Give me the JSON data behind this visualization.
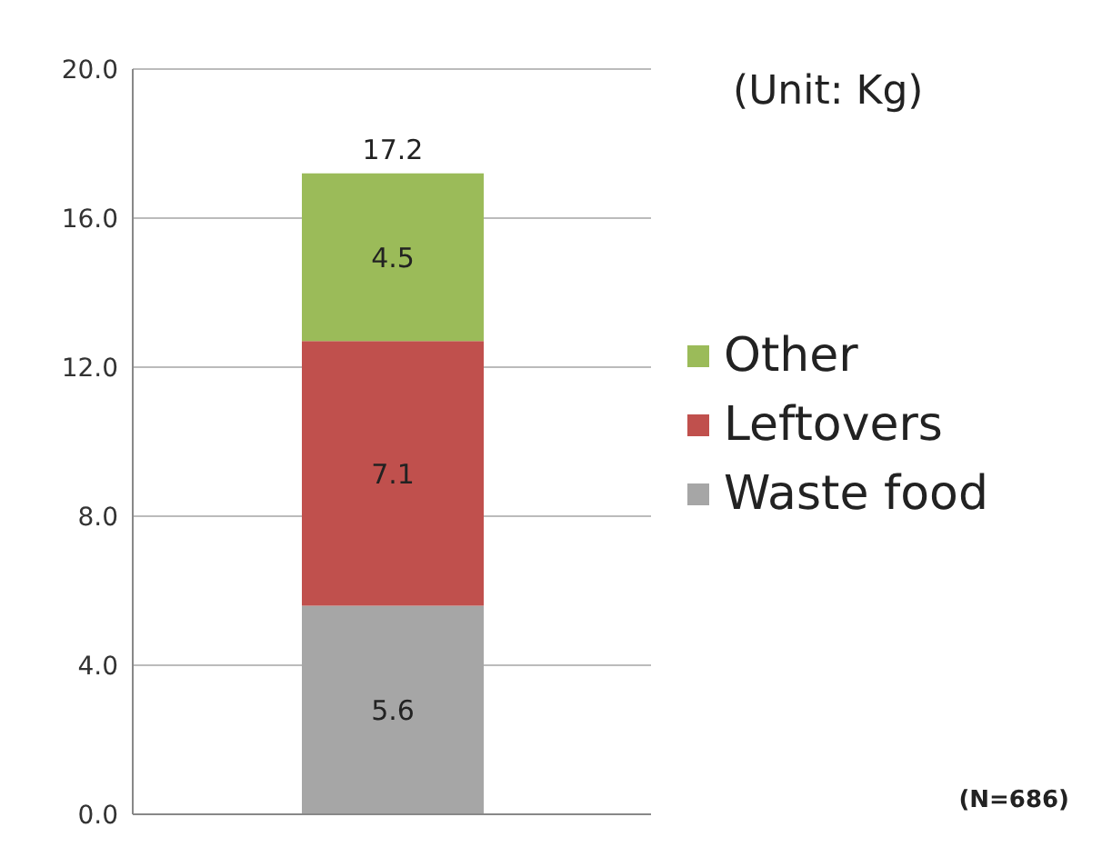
{
  "chart_data": {
    "type": "bar",
    "stacked": true,
    "categories": [
      null
    ],
    "series": [
      {
        "name": "Waste food",
        "color": "#a6a6a6",
        "values": [
          5.6
        ]
      },
      {
        "name": "Leftovers",
        "color": "#c0504d",
        "values": [
          7.1
        ]
      },
      {
        "name": "Other",
        "color": "#9bbb59",
        "values": [
          4.5
        ]
      }
    ],
    "ylim": [
      0,
      20
    ],
    "yticks": [
      {
        "value": 0,
        "label": "0.0"
      },
      {
        "value": 4,
        "label": "4.0"
      },
      {
        "value": 8,
        "label": "8.0"
      },
      {
        "value": 12,
        "label": "12.0"
      },
      {
        "value": 16,
        "label": "16.0"
      },
      {
        "value": 20,
        "label": "20.0"
      }
    ],
    "grid": "y",
    "legend": "right",
    "data_labels": true,
    "totals": [
      "17.2"
    ],
    "annotations": [
      "(Unit: Kg)",
      "(N=686)"
    ]
  }
}
